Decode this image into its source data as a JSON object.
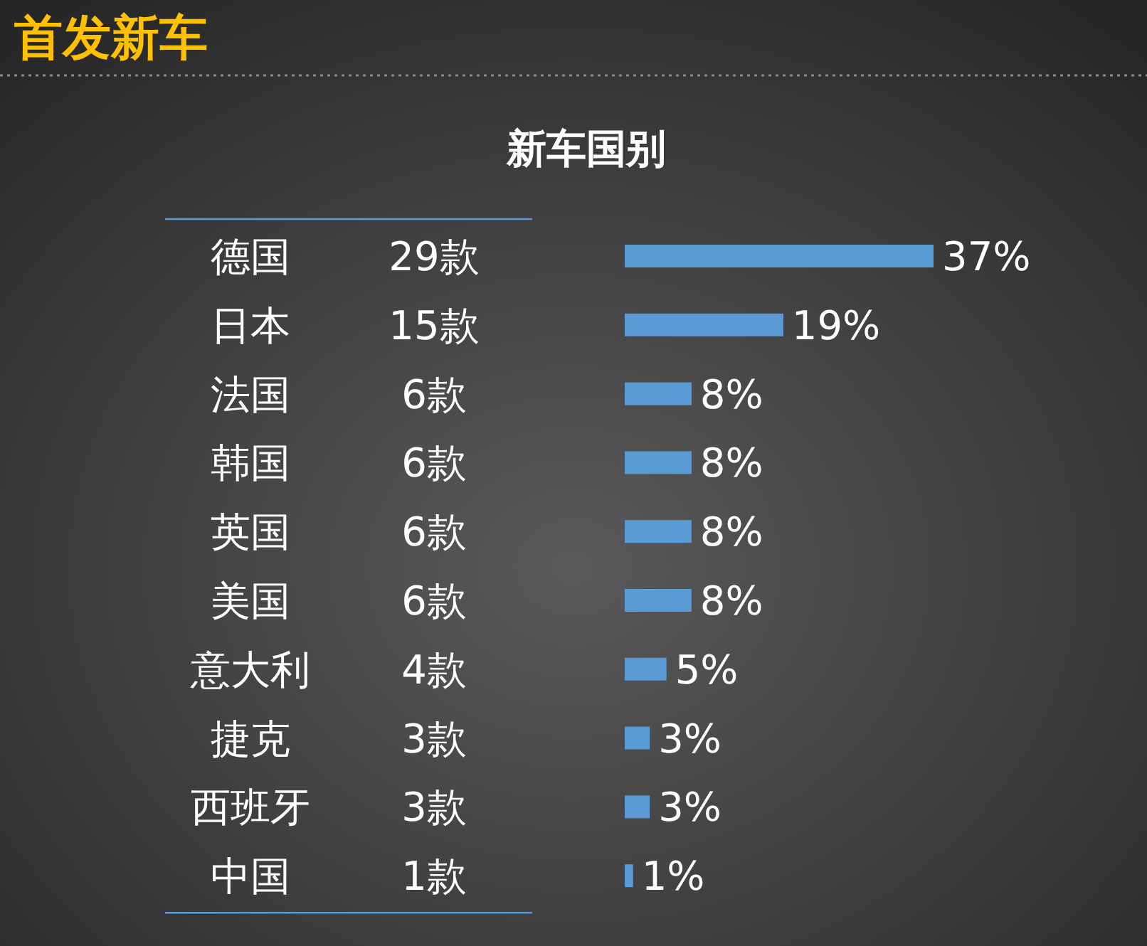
{
  "chart_data": {
    "type": "bar",
    "orientation": "horizontal",
    "title": "首发新车",
    "subtitle": "新车国别",
    "categories": [
      "德国",
      "日本",
      "法国",
      "韩国",
      "英国",
      "美国",
      "意大利",
      "捷克",
      "西班牙",
      "中国"
    ],
    "values": [
      37,
      19,
      8,
      8,
      8,
      8,
      5,
      3,
      3,
      1
    ],
    "value_labels": [
      "37%",
      "19%",
      "8%",
      "8%",
      "8%",
      "8%",
      "5%",
      "3%",
      "3%",
      "1%"
    ],
    "color": "#5b9bd5",
    "annotations": [
      "29款",
      "15款",
      "6款",
      "6款",
      "6款",
      "6款",
      "4款",
      "3款",
      "3款",
      "1款"
    ]
  }
}
